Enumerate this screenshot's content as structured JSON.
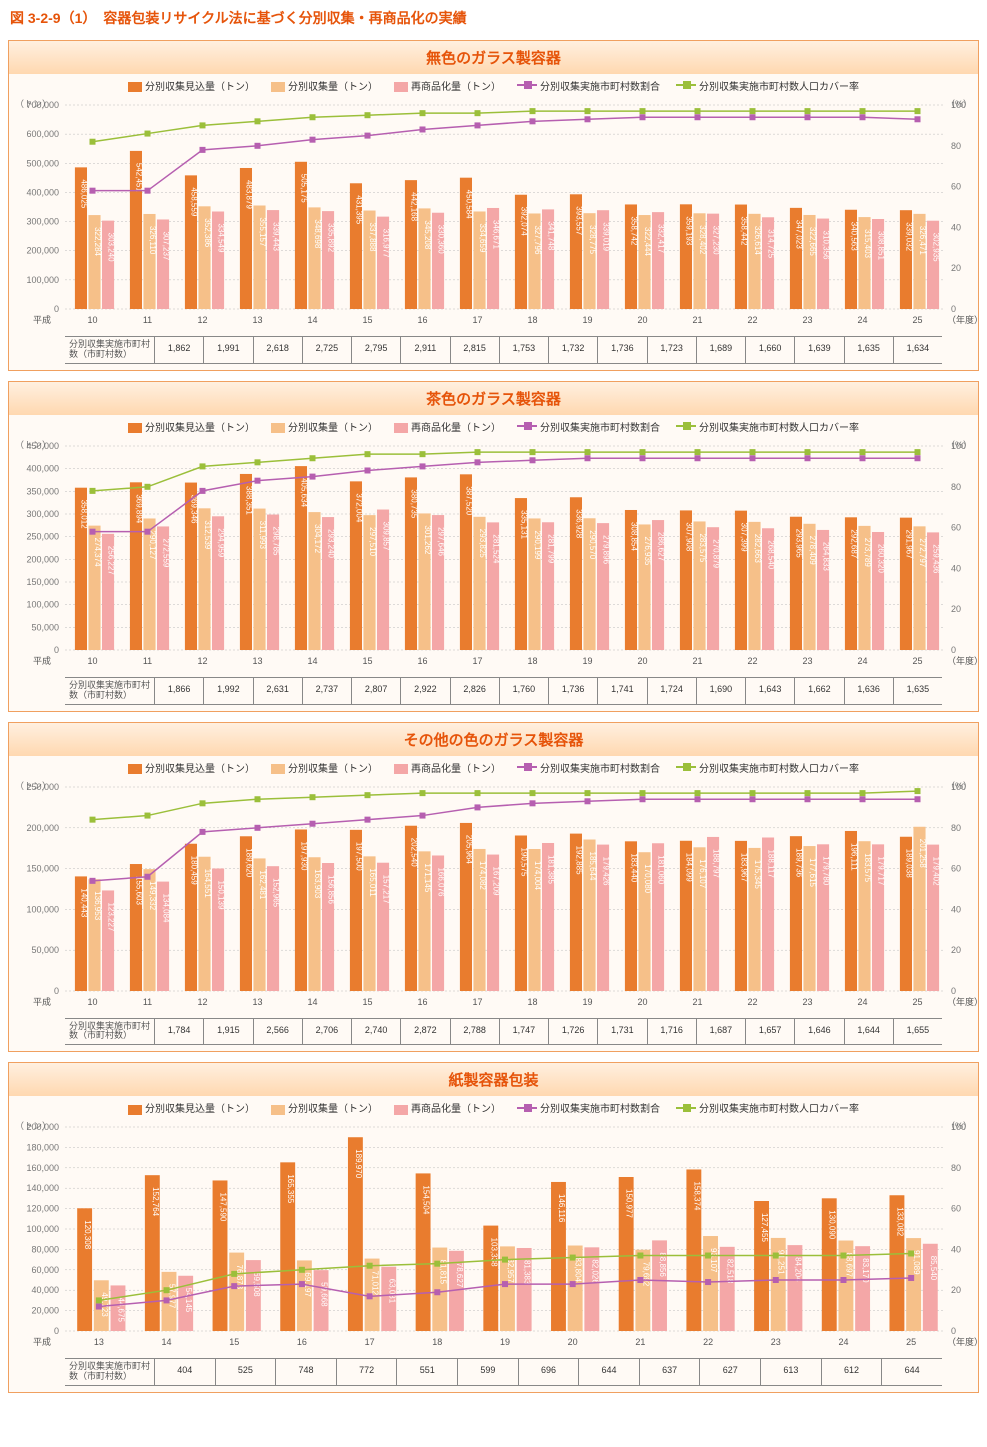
{
  "page_title": "図 3-2-9（1）　容器包装リサイクル法に基づく分別収集・再商品化の実績",
  "legend_labels": {
    "s1": "分別収集見込量（トン）",
    "s2": "分別収集量（トン）",
    "s3": "再商品化量（トン）",
    "l1": "分別収集実施市町村数割合",
    "l2": "分別収集実施市町村数人口カバー率"
  },
  "colors": {
    "s1": "#e97c2e",
    "s2": "#f6c089",
    "s3": "#f4a7a7",
    "l1": "#b65fb0",
    "l2": "#9bbf3a",
    "grid": "#c0c0c0",
    "panel_border": "#f0a060",
    "title": "#e6540a"
  },
  "axis_labels": {
    "left_unit": "（トン）",
    "right_unit": "（%）",
    "x_suffix": "（年度）",
    "era": "平成"
  },
  "table_header": "分別収集実施市町村数（市町村数）",
  "panels": [
    {
      "title": "無色のガラス製容器",
      "y_max": 700000,
      "y_step": 100000,
      "y2_max": 100,
      "years": [
        "10",
        "11",
        "12",
        "13",
        "14",
        "15",
        "16",
        "17",
        "18",
        "19",
        "20",
        "21",
        "22",
        "23",
        "24",
        "25"
      ],
      "series": {
        "s1": [
          486025,
          542451,
          458559,
          483879,
          505175,
          431395,
          442168,
          450584,
          392074,
          393557,
          358742,
          359193,
          358442,
          347023,
          340563,
          339032
        ],
        "s2": [
          322284,
          326110,
          352386,
          355157,
          348698,
          337888,
          345208,
          334659,
          327796,
          328775,
          322444,
          328402,
          326614,
          322665,
          315403,
          326471
        ],
        "s3": [
          303240,
          307237,
          334549,
          339443,
          335892,
          316977,
          330360,
          346671,
          341748,
          339019,
          332417,
          327230,
          314725,
          310356,
          308851,
          302935
        ],
        "l1": [
          58,
          58,
          78,
          80,
          83,
          85,
          88,
          90,
          92,
          93,
          94,
          94,
          94,
          94,
          94,
          93
        ],
        "l2": [
          82,
          86,
          90,
          92,
          94,
          95,
          96,
          96,
          97,
          97,
          97,
          97,
          97,
          97,
          97,
          97
        ]
      },
      "table": [
        "1,862",
        "1,991",
        "2,618",
        "2,725",
        "2,795",
        "2,911",
        "2,815",
        "1,753",
        "1,732",
        "1,736",
        "1,723",
        "1,689",
        "1,660",
        "1,639",
        "1,635",
        "1,634"
      ]
    },
    {
      "title": "茶色のガラス製容器",
      "y_max": 450000,
      "y_step": 50000,
      "y2_max": 100,
      "years": [
        "10",
        "11",
        "12",
        "13",
        "14",
        "15",
        "16",
        "17",
        "18",
        "19",
        "20",
        "21",
        "22",
        "23",
        "24",
        "25"
      ],
      "series": {
        "s1": [
          358012,
          369894,
          369346,
          388351,
          405634,
          372004,
          380735,
          387520,
          335131,
          336928,
          308854,
          307908,
          307399,
          293965,
          292687,
          291967
        ],
        "s2": [
          274374,
          290127,
          312539,
          311993,
          304172,
          297510,
          301262,
          293825,
          290199,
          290570,
          276935,
          283575,
          282663,
          278409,
          273789,
          272797
        ],
        "s3": [
          256227,
          272559,
          294959,
          298785,
          293240,
          309857,
          297646,
          281524,
          281799,
          279896,
          286627,
          270879,
          268540,
          264833,
          260320,
          259436
        ],
        "l1": [
          58,
          58,
          78,
          83,
          85,
          88,
          90,
          92,
          93,
          94,
          94,
          94,
          94,
          94,
          94,
          94
        ],
        "l2": [
          78,
          80,
          90,
          92,
          94,
          96,
          96,
          97,
          97,
          97,
          97,
          97,
          97,
          97,
          97,
          97
        ]
      },
      "table": [
        "1,866",
        "1,992",
        "2,631",
        "2,737",
        "2,807",
        "2,922",
        "2,826",
        "1,760",
        "1,736",
        "1,741",
        "1,724",
        "1,690",
        "1,643",
        "1,662",
        "1,636",
        "1,635"
      ]
    },
    {
      "title": "その他の色のガラス製容器",
      "y_max": 250000,
      "y_step": 50000,
      "y2_max": 100,
      "years": [
        "10",
        "11",
        "12",
        "13",
        "14",
        "15",
        "16",
        "17",
        "18",
        "19",
        "20",
        "21",
        "22",
        "23",
        "24",
        "25"
      ],
      "series": {
        "s1": [
          140443,
          155603,
          180459,
          189620,
          197930,
          197500,
          202540,
          205964,
          190575,
          192885,
          183440,
          184099,
          183967,
          189736,
          196111,
          189038
        ],
        "s2": [
          136953,
          149332,
          164551,
          162481,
          163903,
          165011,
          171145,
          174082,
          174004,
          185644,
          170080,
          176107,
          175345,
          177615,
          183575,
          201258
        ],
        "s3": [
          123227,
          134084,
          150139,
          152965,
          156856,
          157217,
          166076,
          167209,
          181385,
          179426,
          181060,
          188797,
          188117,
          179780,
          179717,
          179402
        ],
        "l1": [
          54,
          56,
          78,
          80,
          82,
          84,
          86,
          90,
          92,
          93,
          94,
          94,
          94,
          94,
          94,
          94
        ],
        "l2": [
          84,
          86,
          92,
          94,
          95,
          96,
          97,
          97,
          97,
          97,
          97,
          97,
          97,
          97,
          97,
          98
        ]
      },
      "table": [
        "1,784",
        "1,915",
        "2,566",
        "2,706",
        "2,740",
        "2,872",
        "2,788",
        "1,747",
        "1,726",
        "1,731",
        "1,716",
        "1,687",
        "1,657",
        "1,646",
        "1,644",
        "1,655"
      ]
    },
    {
      "title": "紙製容器包装",
      "y_max": 200000,
      "y_step": 20000,
      "y2_max": 100,
      "years": [
        "13",
        "14",
        "15",
        "16",
        "17",
        "18",
        "19",
        "20",
        "21",
        "22",
        "23",
        "24",
        "25"
      ],
      "series": {
        "s1": [
          120308,
          152764,
          147590,
          165355,
          189970,
          154504,
          103338,
          146116,
          150977,
          158374,
          127455,
          130090,
          133082
        ],
        "s2": [
          49723,
          57977,
          76878,
          69197,
          71012,
          81815,
          82957,
          83804,
          79692,
          93107,
          91251,
          88697,
          91089
        ],
        "s3": [
          44675,
          54145,
          69508,
          59668,
          63031,
          78627,
          81383,
          82026,
          88856,
          82518,
          84204,
          83170,
          85540
        ],
        "l1": [
          12,
          15,
          22,
          23,
          17,
          19,
          23,
          23,
          25,
          24,
          25,
          25,
          26
        ],
        "l2": [
          15,
          20,
          28,
          30,
          32,
          33,
          35,
          36,
          37,
          37,
          37,
          37,
          38
        ]
      },
      "table": [
        "404",
        "525",
        "748",
        "772",
        "551",
        "599",
        "696",
        "644",
        "637",
        "627",
        "613",
        "612",
        "644"
      ]
    }
  ]
}
